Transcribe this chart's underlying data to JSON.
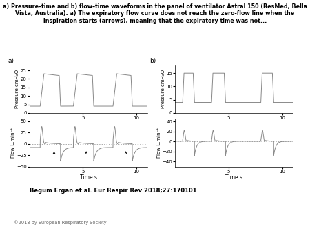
{
  "title_line1": "a) Pressure–time and b) flow–time waveforms in the panel of ventilator Astral 150 (ResMed, Bella",
  "title_line2": "Vista, Australia). a) The expiratory flow curve does not reach the zero-flow line when the",
  "title_line3": "inspiration starts (arrows), meaning that the expiratory time was not...",
  "author_line": "Begum Ergan et al. Eur Respir Rev 2018;27:170101",
  "copyright_line": "©2018 by European Respiratory Society",
  "line_color": "#888888",
  "bg_color": "#ffffff",
  "pressure_a_ylim": [
    0,
    28
  ],
  "pressure_a_yticks": [
    0,
    5,
    10,
    15,
    20,
    25
  ],
  "pressure_a_ylabel": "Pressure cmH₂O",
  "pressure_b_ylim": [
    0,
    18
  ],
  "pressure_b_yticks": [
    0,
    5,
    10,
    15
  ],
  "pressure_b_ylabel": "Pressure cmH₂O",
  "flow_a_ylim": [
    -50,
    55
  ],
  "flow_a_yticks": [
    -50,
    -25,
    0,
    25,
    50
  ],
  "flow_a_ylabel": "Flow L.min⁻¹",
  "flow_b_ylim": [
    -50,
    45
  ],
  "flow_b_yticks": [
    -40,
    -20,
    0,
    20,
    40
  ],
  "flow_b_ylabel": "Flow L.min⁻¹",
  "xlabel": "Time s",
  "xlim": [
    0,
    11
  ],
  "xticks": [
    5,
    10
  ]
}
